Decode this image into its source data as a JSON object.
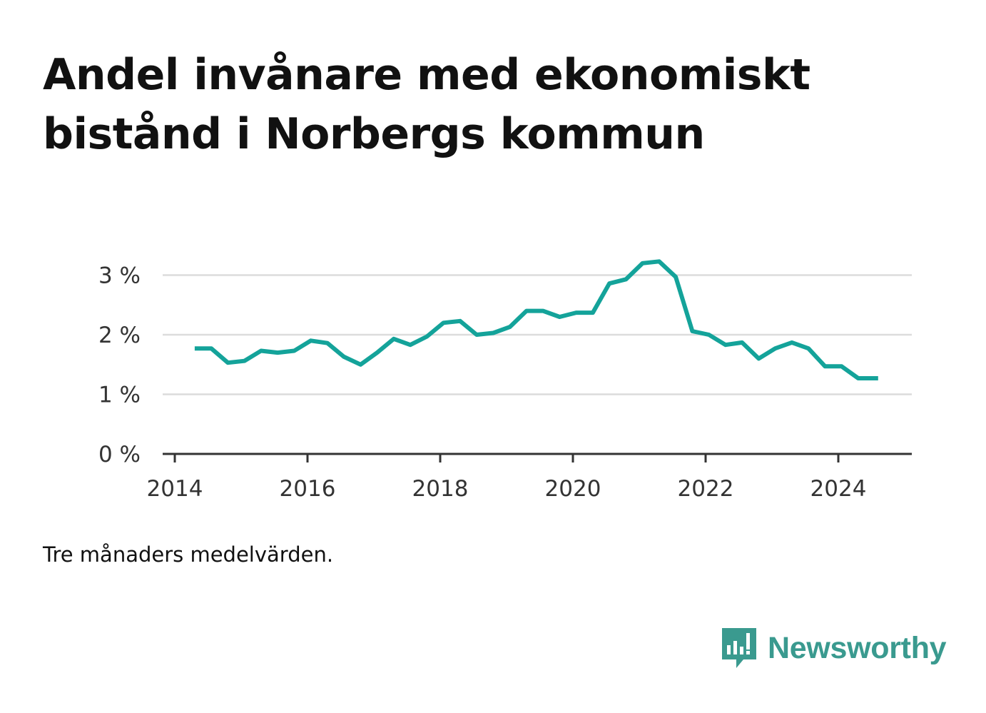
{
  "title": "Andel invånare med ekonomiskt bistånd i Norbergs kommun",
  "note": "Tre månaders medelvärden.",
  "brand": {
    "name": "Newsworthy",
    "icon": "newsworthy-logo-icon",
    "color": "#3a9a8f"
  },
  "colors": {
    "line": "#14a39a",
    "grid": "#dcdcdc",
    "axis": "#333333"
  },
  "chart_data": {
    "type": "line",
    "title": "Andel invånare med ekonomiskt bistånd i Norbergs kommun",
    "xlabel": "",
    "ylabel": "",
    "xlim": [
      2014.0,
      2025.5
    ],
    "ylim": [
      0,
      3.3
    ],
    "x_ticks": [
      2014,
      2016,
      2018,
      2020,
      2022,
      2024
    ],
    "y_ticks": [
      0,
      1,
      2,
      3
    ],
    "y_tick_labels": [
      "0 %",
      "1 %",
      "2 %",
      "3 %"
    ],
    "grid": true,
    "series": [
      {
        "x": [
          2014.3,
          2014.55,
          2014.8,
          2015.05,
          2015.3,
          2015.55,
          2015.8,
          2016.05,
          2016.3,
          2016.55,
          2016.8,
          2017.05,
          2017.3,
          2017.55,
          2017.8,
          2018.05,
          2018.3,
          2018.55,
          2018.8,
          2019.05,
          2019.3,
          2019.55,
          2019.8,
          2020.05,
          2020.3,
          2020.55,
          2020.8,
          2021.05,
          2021.3,
          2021.55,
          2021.8,
          2022.05,
          2022.3,
          2022.55,
          2022.8,
          2023.05,
          2023.3,
          2023.55,
          2023.8,
          2024.05,
          2024.3,
          2024.6
        ],
        "values": [
          1.77,
          1.77,
          1.53,
          1.56,
          1.73,
          1.7,
          1.73,
          1.9,
          1.86,
          1.63,
          1.5,
          1.7,
          1.93,
          1.83,
          1.97,
          2.2,
          2.23,
          2.0,
          2.03,
          2.13,
          2.4,
          2.4,
          2.3,
          2.37,
          2.37,
          2.86,
          2.93,
          3.2,
          3.23,
          2.97,
          2.06,
          2.0,
          1.83,
          1.87,
          1.6,
          1.77,
          1.87,
          1.77,
          1.47,
          1.47,
          1.27,
          1.27
        ]
      }
    ]
  }
}
